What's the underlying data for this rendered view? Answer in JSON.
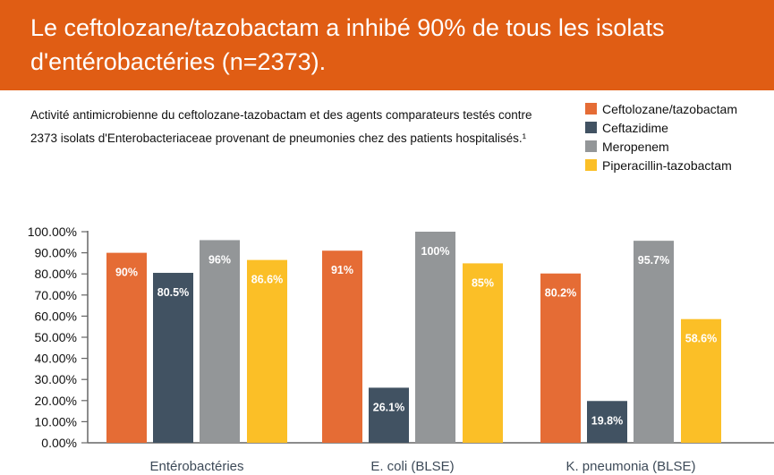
{
  "header": {
    "title": "Le ceftolozane/tazobactam a inhibé 90%  de tous les isolats d'entérobactéries (n=2373)."
  },
  "subtitle": "Activité antimicrobienne du ceftolozane-tazobactam et des agents comparateurs testés contre 2373 isolats d'Enterobacteriaceae provenant de pneumonies chez des patients hospitalisés.¹",
  "chart_data": {
    "type": "bar",
    "title": "Le ceftolozane/tazobactam a inhibé 90%  de tous les isolats d'entérobactéries (n=2373).",
    "categories": [
      "Entérobactéries",
      "E. coli (BLSE)",
      "K. pneumonia (BLSE)"
    ],
    "series": [
      {
        "name": "Ceftolozane/tazobactam",
        "color": "#e56c35",
        "values": [
          90,
          91,
          80.2
        ],
        "labels": [
          "90%",
          "91%",
          "80.2%"
        ]
      },
      {
        "name": "Ceftazidime",
        "color": "#415262",
        "values": [
          80.5,
          26.1,
          19.8
        ],
        "labels": [
          "80.5%",
          "26.1%",
          "19.8%"
        ]
      },
      {
        "name": "Meropenem",
        "color": "#939698",
        "values": [
          96,
          100,
          95.7
        ],
        "labels": [
          "96%",
          "100%",
          "95.7%"
        ]
      },
      {
        "name": "Piperacillin-tazobactam",
        "color": "#fbbf27",
        "values": [
          86.6,
          85,
          58.6
        ],
        "labels": [
          "86.6%",
          "85%",
          "58.6%"
        ]
      }
    ],
    "yticks": [
      "0.00%",
      "10.00%",
      "20.00%",
      "30.00%",
      "40.00%",
      "50.00%",
      "60.00%",
      "70.00%",
      "80.00%",
      "90.00%",
      "100.00%"
    ],
    "ylim": [
      0,
      100
    ],
    "xlabel": "",
    "ylabel": "",
    "grid": false,
    "legend": "top-right"
  }
}
